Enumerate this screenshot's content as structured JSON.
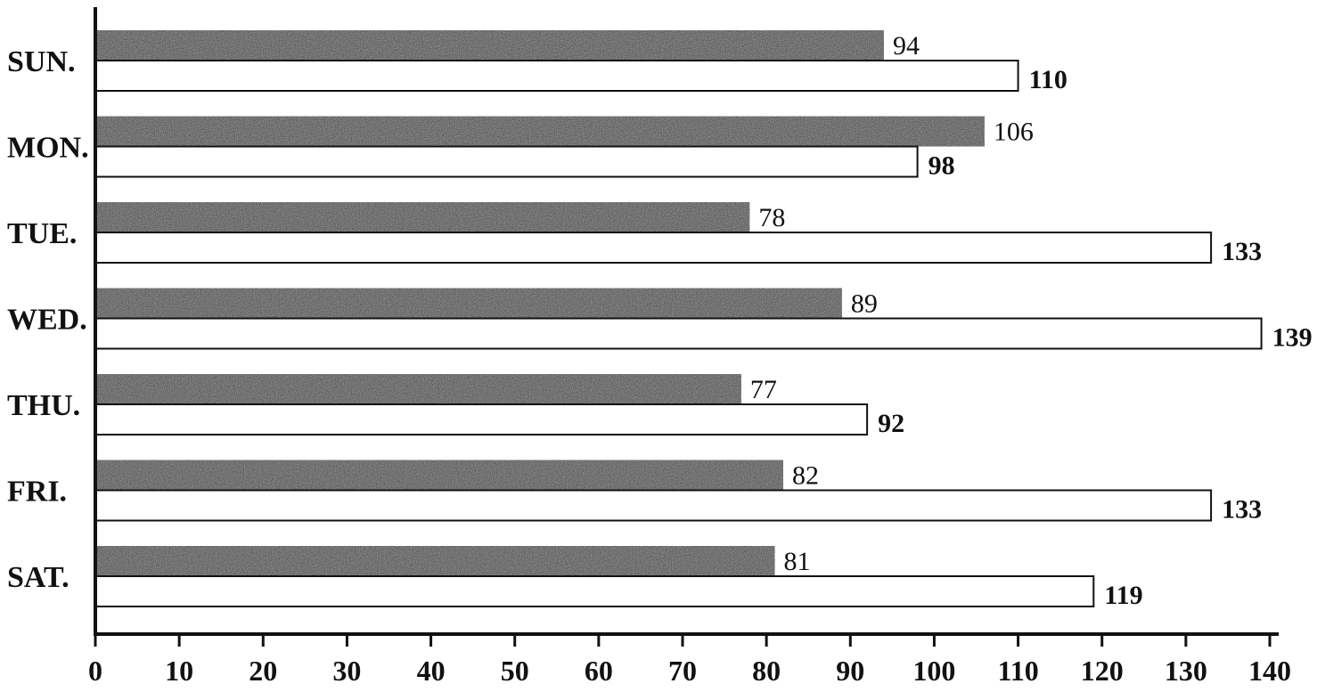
{
  "chart_data": {
    "type": "bar",
    "orientation": "horizontal",
    "categories": [
      "SUN.",
      "MON.",
      "TUE.",
      "WED.",
      "THU.",
      "FRI.",
      "SAT."
    ],
    "series": [
      {
        "values": [
          94,
          106,
          78,
          89,
          77,
          82,
          81
        ],
        "color": "#3a3a3a",
        "style": "dark-textured"
      },
      {
        "values": [
          110,
          98,
          133,
          139,
          92,
          133,
          119
        ],
        "color": "#ffffff",
        "style": "outlined"
      }
    ],
    "xlim": [
      0,
      140
    ],
    "xticks": [
      0,
      10,
      20,
      30,
      40,
      50,
      60,
      70,
      80,
      90,
      100,
      110,
      120,
      130,
      140
    ],
    "title": "",
    "xlabel": "",
    "ylabel": "",
    "grid": false
  }
}
